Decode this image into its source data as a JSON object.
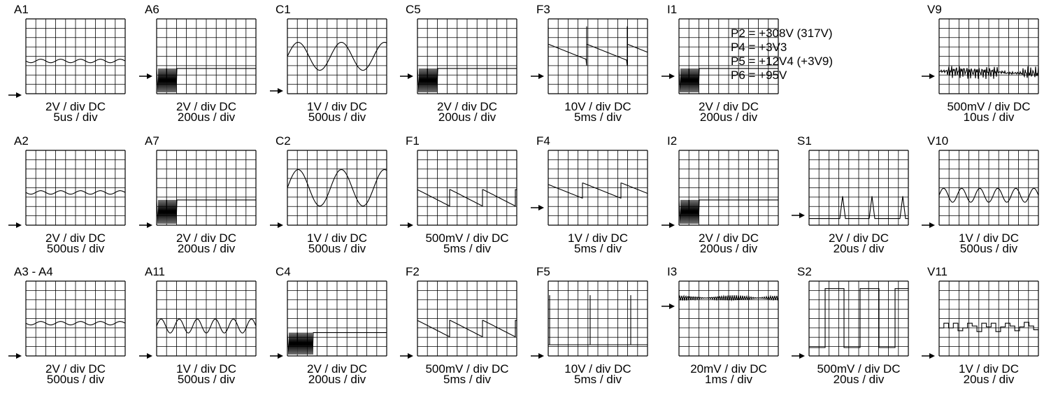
{
  "panels": [
    {
      "id": "A1",
      "volts": "2V / div DC",
      "time": "5us / div",
      "wave": "sine_small",
      "arrow": true
    },
    {
      "id": "A6",
      "volts": "2V / div DC",
      "time": "200us / div",
      "wave": "burst",
      "arrow": true
    },
    {
      "id": "C1",
      "volts": "1V / div DC",
      "time": "500us / div",
      "wave": "sine_big",
      "arrow": true
    },
    {
      "id": "C5",
      "volts": "2V / div DC",
      "time": "200us / div",
      "wave": "burst",
      "arrow": true
    },
    {
      "id": "F3",
      "volts": "10V / div DC",
      "time": "5ms / div",
      "wave": "saw_spike",
      "arrow": true
    },
    {
      "id": "I1",
      "volts": "2V / div DC",
      "time": "200us / div",
      "wave": "burst",
      "arrow": true
    },
    {
      "id": "V9",
      "volts": "500mV / div DC",
      "time": "10us / div",
      "wave": "noisy_digital",
      "arrow": true
    },
    {
      "id": "A2",
      "volts": "2V / div DC",
      "time": "500us / div",
      "wave": "sine_small",
      "arrow": true
    },
    {
      "id": "A7",
      "volts": "2V / div DC",
      "time": "200us / div",
      "wave": "burst",
      "arrow": true
    },
    {
      "id": "C2",
      "volts": "1V / div DC",
      "time": "500us / div",
      "wave": "sine_big2",
      "arrow": true
    },
    {
      "id": "F1",
      "volts": "500mV / div DC",
      "time": "5ms / div",
      "wave": "saw",
      "arrow": true
    },
    {
      "id": "F4",
      "volts": "1V / div DC",
      "time": "5ms / div",
      "wave": "saw2",
      "arrow": true
    },
    {
      "id": "I2",
      "volts": "2V / div DC",
      "time": "200us / div",
      "wave": "burst",
      "arrow": true
    },
    {
      "id": "S1",
      "volts": "2V / div DC",
      "time": "20us / div",
      "wave": "pulses",
      "arrow": true
    },
    {
      "id": "V10",
      "volts": "1V / div DC",
      "time": "500us / div",
      "wave": "sine_med",
      "arrow": true
    },
    {
      "id": "A3 - A4",
      "volts": "2V / div DC",
      "time": "500us / div",
      "wave": "sine_small",
      "arrow": true
    },
    {
      "id": "A11",
      "volts": "1V / div DC",
      "time": "500us / div",
      "wave": "sine_med",
      "arrow": true
    },
    {
      "id": "C4",
      "volts": "2V / div DC",
      "time": "200us / div",
      "wave": "burst_low",
      "arrow": true
    },
    {
      "id": "F2",
      "volts": "500mV / div DC",
      "time": "5ms / div",
      "wave": "saw",
      "arrow": true
    },
    {
      "id": "F5",
      "volts": "10V / div DC",
      "time": "5ms / div",
      "wave": "spikes",
      "arrow": true
    },
    {
      "id": "I3",
      "volts": "20mV / div DC",
      "time": "1ms / div",
      "wave": "noise",
      "arrow": true
    },
    {
      "id": "S2",
      "volts": "500mV / div DC",
      "time": "20us / div",
      "wave": "square",
      "arrow": true
    },
    {
      "id": "V11",
      "volts": "1V / div DC",
      "time": "20us / div",
      "wave": "steps",
      "arrow": true
    }
  ],
  "supplies": [
    "P2 = +308V (317V)",
    "P4 = +3V3",
    "P5 = +12V4 (+3V9)",
    "P6 = +95V"
  ]
}
